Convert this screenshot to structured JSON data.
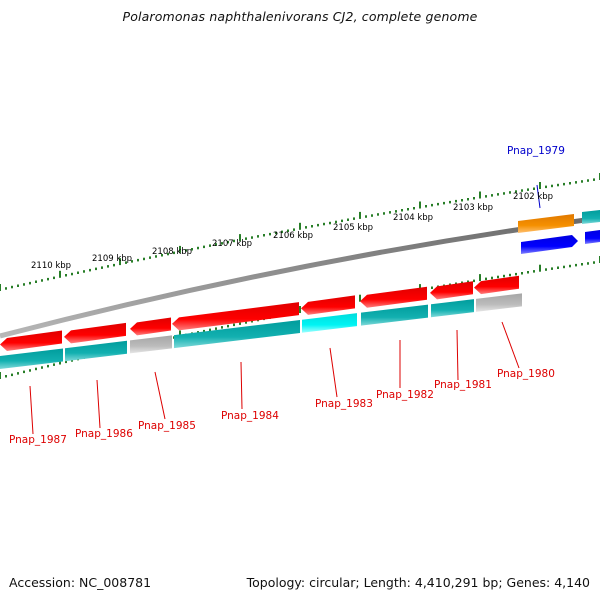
{
  "title": "Polaromonas naphthalenivorans CJ2, complete genome",
  "footer": {
    "accession": "Accession: NC_008781",
    "topology": "Topology: circular; Length: 4,410,291 bp; Genes: 4,140"
  },
  "colors": {
    "forward_gene": "#f80000",
    "reverse_gene": "#0000ee",
    "orange_gene": "#f08c00",
    "cds_teal": "#11aaaa",
    "cds_cyan": "#00e8e8",
    "cds_grey": "#b4b4b4",
    "backbone": "#808080",
    "tick": "#107010",
    "label_red": "#dd0000",
    "label_blue": "#0000cc"
  },
  "kbp_ticks": [
    "2110 kbp",
    "2109 kbp",
    "2108 kbp",
    "2107 kbp",
    "2106 kbp",
    "2105 kbp",
    "2104 kbp",
    "2103 kbp",
    "2102 kbp"
  ],
  "genes": [
    {
      "label": "Pnap_1979",
      "strand": "reverse",
      "color": "blue"
    },
    {
      "label": "Pnap_1980",
      "strand": "forward",
      "color": "red"
    },
    {
      "label": "Pnap_1981",
      "strand": "forward",
      "color": "red"
    },
    {
      "label": "Pnap_1982",
      "strand": "forward",
      "color": "red"
    },
    {
      "label": "Pnap_1983",
      "strand": "forward",
      "color": "red"
    },
    {
      "label": "Pnap_1984",
      "strand": "forward",
      "color": "red"
    },
    {
      "label": "Pnap_1985",
      "strand": "forward",
      "color": "red"
    },
    {
      "label": "Pnap_1986",
      "strand": "forward",
      "color": "red"
    },
    {
      "label": "Pnap_1987",
      "strand": "forward",
      "color": "red"
    }
  ]
}
